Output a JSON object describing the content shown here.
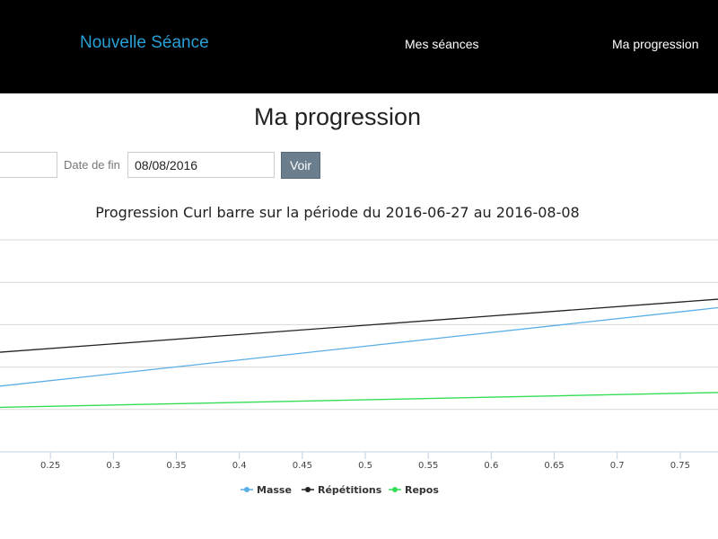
{
  "navbar": {
    "brand": "Nouvelle Séance",
    "links": [
      {
        "label": "Mes séances"
      },
      {
        "label": "Ma progression"
      }
    ]
  },
  "page": {
    "title": "Ma progression"
  },
  "form": {
    "start_date_value": "",
    "end_date_label": "Date de fin",
    "end_date_value": "08/08/2016",
    "submit_label": "Voir"
  },
  "colors": {
    "brand": "#2a9fd6",
    "button": "#6a7e8e",
    "masse": "#5aaee6",
    "repetitions": "#222222",
    "repos": "#33dd55"
  },
  "chart_data": {
    "type": "line",
    "title": "Progression Curl barre sur la période du 2016-06-27 au 2016-08-08",
    "xlabel": "",
    "ylabel": "",
    "xlim": [
      0.21,
      0.78
    ],
    "ylim": [
      0,
      5
    ],
    "y_gridlines": [
      1,
      2,
      3,
      4,
      5
    ],
    "x_ticks": [
      "0.25",
      "0.3",
      "0.35",
      "0.4",
      "0.45",
      "0.5",
      "0.55",
      "0.6",
      "0.65",
      "0.7",
      "0.75"
    ],
    "x_tick_values": [
      0.25,
      0.3,
      0.35,
      0.4,
      0.45,
      0.5,
      0.55,
      0.6,
      0.65,
      0.7,
      0.75
    ],
    "grid": true,
    "legend_position": "bottom",
    "series": [
      {
        "name": "Masse",
        "color": "#5aaee6",
        "x": [
          0.21,
          0.78
        ],
        "y": [
          1.55,
          3.4
        ]
      },
      {
        "name": "Répétitions",
        "color": "#222222",
        "x": [
          0.21,
          0.78
        ],
        "y": [
          2.35,
          3.6
        ]
      },
      {
        "name": "Repos",
        "color": "#33dd55",
        "x": [
          0.21,
          0.78
        ],
        "y": [
          1.05,
          1.4
        ]
      }
    ]
  }
}
